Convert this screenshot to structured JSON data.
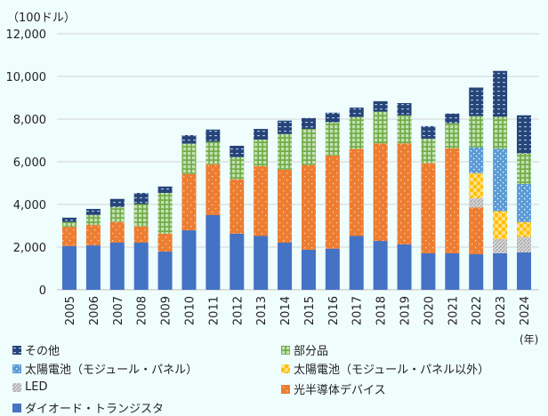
{
  "chart_data": {
    "type": "bar",
    "stacked": true,
    "unit_label": "（100ドル）",
    "x_unit_label": "(年)",
    "categories": [
      "2005",
      "2006",
      "2007",
      "2008",
      "2009",
      "2010",
      "2011",
      "2012",
      "2013",
      "2014",
      "2015",
      "2016",
      "2017",
      "2018",
      "2019",
      "2020",
      "2021",
      "2022",
      "2023",
      "2024"
    ],
    "ylim": [
      0,
      12000
    ],
    "yticks": [
      "0",
      "2,000",
      "4,000",
      "6,000",
      "8,000",
      "10,000",
      "12,000"
    ],
    "grid": true,
    "legend_position": "bottom",
    "series": [
      {
        "name": "ダイオード・トランジスタ",
        "color": "#4472c4",
        "pattern": "solid",
        "values": [
          2050,
          2080,
          2210,
          2210,
          1790,
          2790,
          3500,
          2630,
          2520,
          2210,
          1880,
          1930,
          2520,
          2290,
          2130,
          1710,
          1710,
          1670,
          1710,
          1750
        ]
      },
      {
        "name": "光半導体デバイス",
        "color": "#ed7d31",
        "pattern": "dots",
        "values": [
          900,
          960,
          970,
          760,
          840,
          2640,
          2380,
          2550,
          3270,
          3420,
          3970,
          4360,
          4080,
          4570,
          4730,
          4220,
          4920,
          2190,
          0,
          0
        ]
      },
      {
        "name": "LED",
        "color": "#a5a5a5",
        "pattern": "diagonal",
        "values": [
          0,
          0,
          0,
          0,
          0,
          0,
          0,
          0,
          0,
          0,
          0,
          0,
          0,
          0,
          0,
          0,
          0,
          440,
          670,
          730
        ]
      },
      {
        "name": "太陽電池（モジュール・パネル以外）",
        "color": "#ffc000",
        "pattern": "checker",
        "values": [
          0,
          0,
          0,
          0,
          0,
          0,
          0,
          0,
          0,
          0,
          0,
          0,
          0,
          0,
          0,
          0,
          0,
          1170,
          1310,
          700
        ]
      },
      {
        "name": "太陽電池（モジュール・パネル）",
        "color": "#5b9bd5",
        "pattern": "dots",
        "values": [
          0,
          0,
          0,
          0,
          0,
          0,
          0,
          0,
          0,
          0,
          0,
          0,
          0,
          0,
          0,
          0,
          0,
          1210,
          2920,
          1780
        ]
      },
      {
        "name": "部分品",
        "color": "#70ad47",
        "pattern": "grid",
        "values": [
          230,
          470,
          700,
          1050,
          1910,
          1420,
          1060,
          1040,
          1250,
          1670,
          1690,
          1560,
          1500,
          1490,
          1320,
          1150,
          1180,
          1460,
          1500,
          1430
        ]
      },
      {
        "name": "その他",
        "color": "#264478",
        "pattern": "dashes",
        "values": [
          200,
          280,
          380,
          520,
          300,
          400,
          570,
          530,
          500,
          630,
          510,
          450,
          440,
          490,
          570,
          590,
          450,
          1340,
          2150,
          1790
        ]
      }
    ]
  }
}
